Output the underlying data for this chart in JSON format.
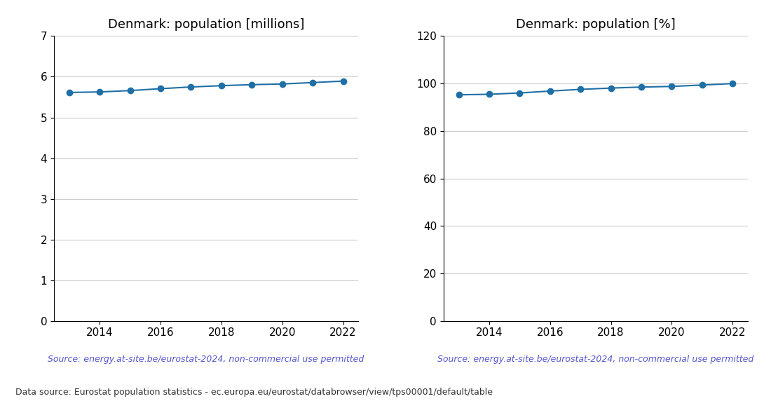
{
  "years": [
    2013,
    2014,
    2015,
    2016,
    2017,
    2018,
    2019,
    2020,
    2021,
    2022
  ],
  "pop_millions": [
    5.614,
    5.627,
    5.66,
    5.707,
    5.749,
    5.781,
    5.806,
    5.823,
    5.857,
    5.894
  ],
  "pop_percent": [
    95.25,
    95.47,
    96.03,
    96.83,
    97.54,
    98.09,
    98.51,
    98.79,
    99.37,
    100.0
  ],
  "title_left": "Denmark: population [millions]",
  "title_right": "Denmark: population [%]",
  "source_text": "Source: energy.at-site.be/eurostat-2024, non-commercial use permitted",
  "footer_text": "Data source: Eurostat population statistics - ec.europa.eu/eurostat/databrowser/view/tps00001/default/table",
  "line_color": "#1f6fa5",
  "source_color": "#5555cc",
  "footer_color": "#333333",
  "ylim_left": [
    0,
    7
  ],
  "ylim_right": [
    0,
    120
  ],
  "yticks_left": [
    0,
    1,
    2,
    3,
    4,
    5,
    6,
    7
  ],
  "yticks_right": [
    0,
    20,
    40,
    60,
    80,
    100,
    120
  ],
  "xlim": [
    2012.5,
    2022.5
  ],
  "xticks": [
    2014,
    2016,
    2018,
    2020,
    2022
  ],
  "marker": "o",
  "markersize": 6,
  "linewidth": 1.5,
  "grid_color": "#cccccc",
  "grid_linewidth": 0.8,
  "title_fontsize": 13,
  "tick_fontsize": 11,
  "source_fontsize": 9,
  "footer_fontsize": 9
}
